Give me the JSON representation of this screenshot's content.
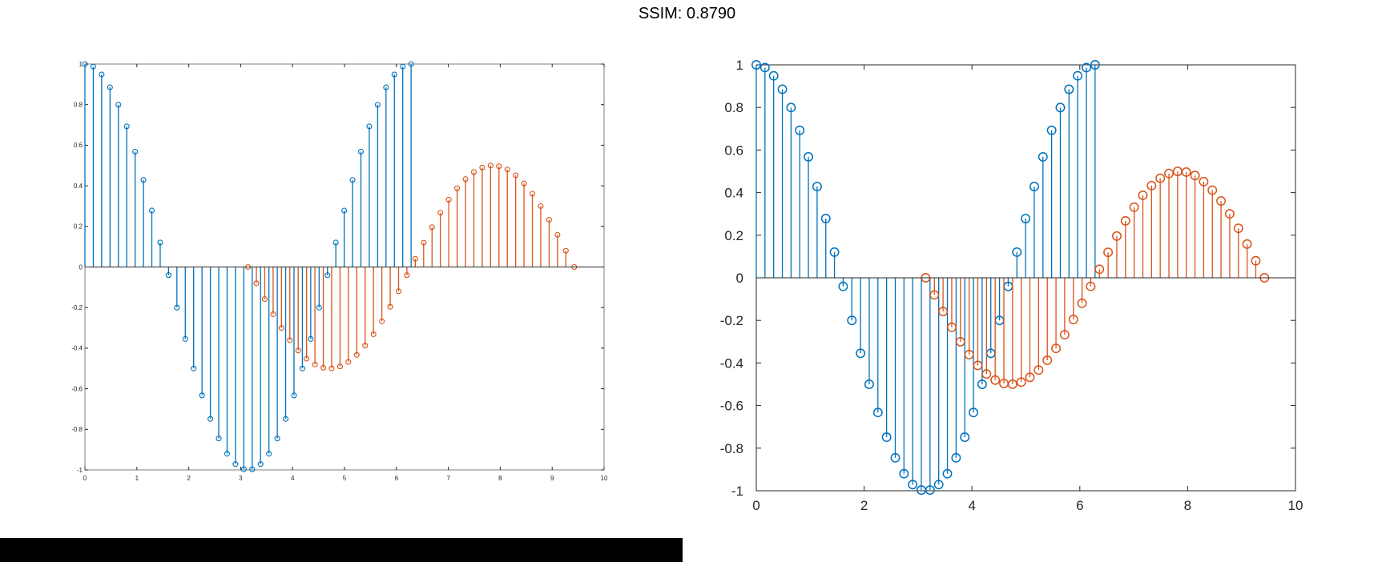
{
  "header": {
    "title": "SSIM: 0.8790"
  },
  "colors": {
    "series_cos": "#0072BD",
    "series_sin": "#D95319",
    "axes": "#262626"
  },
  "chart_data": [
    {
      "type": "stem",
      "xlim": [
        0,
        10
      ],
      "ylim": [
        -1,
        1
      ],
      "xticks": [
        "0",
        "1",
        "2",
        "3",
        "4",
        "5",
        "6",
        "7",
        "8",
        "9",
        "10"
      ],
      "yticks": [
        "-1",
        "-0.8",
        "-0.6",
        "-0.4",
        "-0.2",
        "0",
        "0.2",
        "0.4",
        "0.6",
        "0.8",
        "1"
      ],
      "grid": false,
      "series": [
        {
          "function": "cos(x)",
          "x_start": 0,
          "x_end": 6.283,
          "count": 40
        },
        {
          "function": "0.5*sin(x)",
          "x_start": 3.1416,
          "x_end": 9.4248,
          "count": 40
        }
      ]
    },
    {
      "type": "stem",
      "xlim": [
        0,
        10
      ],
      "ylim": [
        -1,
        1
      ],
      "xticks": [
        "0",
        "2",
        "4",
        "6",
        "8",
        "10"
      ],
      "yticks": [
        "-1",
        "-0.8",
        "-0.6",
        "-0.4",
        "-0.2",
        "0",
        "0.2",
        "0.4",
        "0.6",
        "0.8",
        "1"
      ],
      "grid": false,
      "series": [
        {
          "function": "cos(x)",
          "x_start": 0,
          "x_end": 6.283,
          "count": 40
        },
        {
          "function": "0.5*sin(x)",
          "x_start": 3.1416,
          "x_end": 9.4248,
          "count": 40
        }
      ]
    }
  ]
}
